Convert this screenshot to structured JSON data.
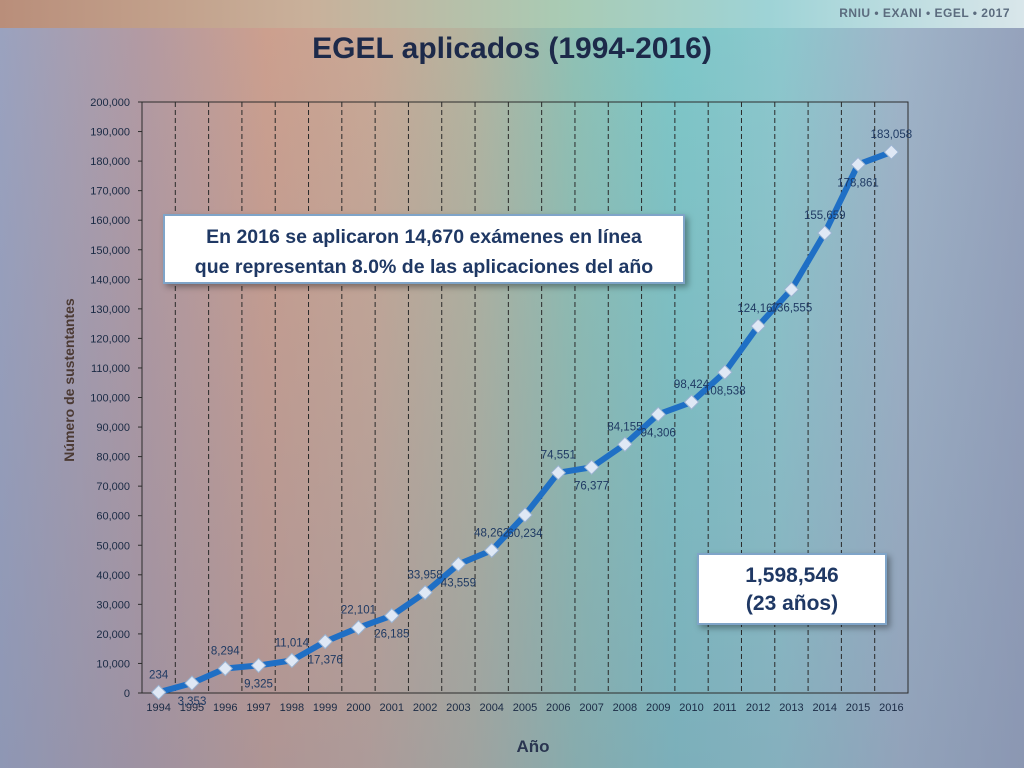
{
  "header": {
    "brand": "RNIU • EXANI • EGEL • 2017"
  },
  "chart_data": {
    "type": "line",
    "title": "EGEL aplicados (1994-2016)",
    "xlabel": "Año",
    "ylabel": "Número de sustentantes",
    "ylim": [
      0,
      200000
    ],
    "yticks": [
      "0",
      "10,000",
      "20,000",
      "30,000",
      "40,000",
      "50,000",
      "60,000",
      "70,000",
      "80,000",
      "90,000",
      "100,000",
      "110,000",
      "120,000",
      "130,000",
      "140,000",
      "150,000",
      "160,000",
      "170,000",
      "180,000",
      "190,000",
      "200,000"
    ],
    "categories": [
      "1994",
      "1995",
      "1996",
      "1997",
      "1998",
      "1999",
      "2000",
      "2001",
      "2002",
      "2003",
      "2004",
      "2005",
      "2006",
      "2007",
      "2008",
      "2009",
      "2010",
      "2011",
      "2012",
      "2013",
      "2014",
      "2015",
      "2016"
    ],
    "values": [
      234,
      3353,
      8294,
      9325,
      11014,
      17376,
      22101,
      26185,
      33958,
      43559,
      48262,
      60234,
      74551,
      76377,
      84155,
      94306,
      98424,
      108538,
      124167,
      136555,
      155659,
      178861,
      183058
    ],
    "data_labels": [
      "234",
      "3,353",
      "8,294",
      "9,325",
      "11,014",
      "17,376",
      "22,101",
      "26,185",
      "33,958",
      "43,559",
      "48,262",
      "60,234",
      "74,551",
      "76,377",
      "84,155",
      "94,306",
      "98,424",
      "108,538",
      "124,167",
      "136,555",
      "155,659",
      "178,861",
      "183,058"
    ],
    "line_color": "#1f6fc5",
    "grid": "vertical dashed",
    "legend": "none"
  },
  "annotations": {
    "online_note_line1": "En 2016 se aplicaron 14,670 exámenes en línea",
    "online_note_line2": "que representan 8.0% de las aplicaciones del año",
    "total_value": "1,598,546",
    "total_years": "(23 años)"
  }
}
